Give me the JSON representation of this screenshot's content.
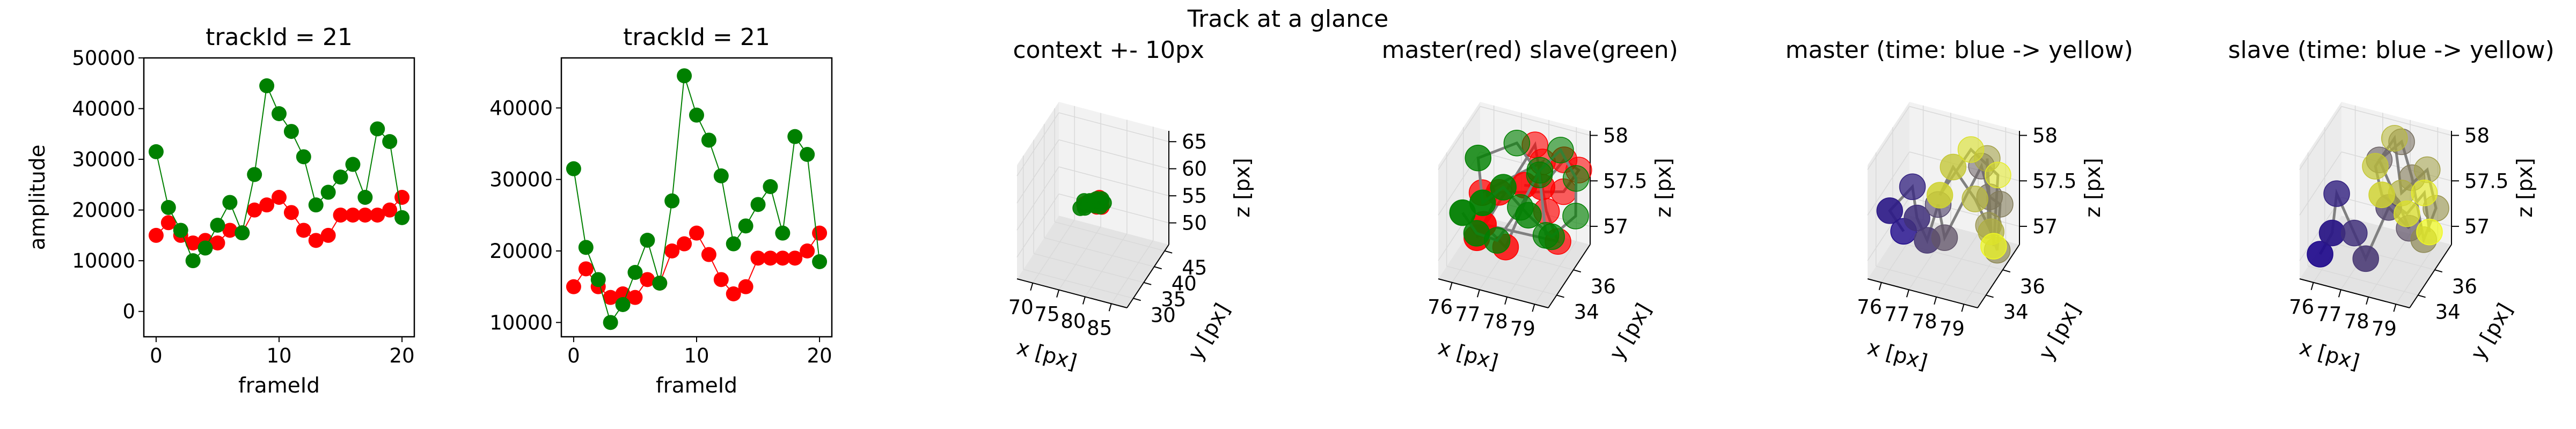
{
  "figure_title": "Track at a glance",
  "colors": {
    "master": "#ff0000",
    "slave": "#008000",
    "link": "#808080",
    "pane_light": "#f2f2f2",
    "pane_mid": "#ebebeb",
    "pane_dark": "#e3e3e3",
    "time_start": "#1f0a8c",
    "time_end": "#f0f921"
  },
  "chart_data": [
    {
      "type": "scatter",
      "title": "trackId = 21",
      "xlabel": "frameId",
      "ylabel": "amplitude",
      "xlim": [
        -1,
        21
      ],
      "ylim": [
        -5000,
        50000
      ],
      "xticks": [
        0,
        10,
        20
      ],
      "yticks": [
        0,
        10000,
        20000,
        30000,
        40000,
        50000
      ],
      "series": [
        {
          "x": [
            0,
            1,
            2,
            3,
            4,
            5,
            6,
            7,
            8,
            9,
            10,
            11,
            12,
            13,
            14,
            15,
            16,
            17,
            18,
            19,
            20
          ],
          "y": [
            15000,
            17500,
            15000,
            13500,
            14000,
            13500,
            16000,
            15500,
            20000,
            21000,
            22500,
            19500,
            16000,
            14000,
            15000,
            19000,
            19000,
            19000,
            19000,
            20000,
            22500
          ]
        },
        {
          "x": [
            0,
            1,
            2,
            3,
            4,
            5,
            6,
            7,
            8,
            9,
            10,
            11,
            12,
            13,
            14,
            15,
            16,
            17,
            18,
            19,
            20
          ],
          "y": [
            31500,
            20500,
            16000,
            10000,
            12500,
            17000,
            21500,
            15500,
            27000,
            44500,
            39000,
            35500,
            30500,
            21000,
            23500,
            26500,
            29000,
            22500,
            36000,
            33500,
            18500
          ]
        }
      ],
      "series_colors": [
        "#ff0000",
        "#008000"
      ]
    },
    {
      "type": "scatter",
      "title": "trackId = 21",
      "xlabel": "frameId",
      "ylabel": "",
      "xlim": [
        -1,
        21
      ],
      "ylim": [
        8000,
        47000
      ],
      "xticks": [
        0,
        10,
        20
      ],
      "yticks": [
        10000,
        20000,
        30000,
        40000
      ],
      "series": [
        {
          "x": [
            0,
            1,
            2,
            3,
            4,
            5,
            6,
            7,
            8,
            9,
            10,
            11,
            12,
            13,
            14,
            15,
            16,
            17,
            18,
            19,
            20
          ],
          "y": [
            15000,
            17500,
            15000,
            13500,
            14000,
            13500,
            16000,
            15500,
            20000,
            21000,
            22500,
            19500,
            16000,
            14000,
            15000,
            19000,
            19000,
            19000,
            19000,
            20000,
            22500
          ]
        },
        {
          "x": [
            0,
            1,
            2,
            3,
            4,
            5,
            6,
            7,
            8,
            9,
            10,
            11,
            12,
            13,
            14,
            15,
            16,
            17,
            18,
            19,
            20
          ],
          "y": [
            31500,
            20500,
            16000,
            10000,
            12500,
            17000,
            21500,
            15500,
            27000,
            44500,
            39000,
            35500,
            30500,
            21000,
            23500,
            26500,
            29000,
            22500,
            36000,
            33500,
            18500
          ]
        }
      ],
      "series_colors": [
        "#ff0000",
        "#008000"
      ]
    },
    {
      "type": "scatter",
      "title": "context +- 10px",
      "xlabel": "x [px]",
      "ylabel": "y [px]",
      "zlabel": "z [px]",
      "xlim": [
        67,
        88
      ],
      "ylim": [
        27,
        47
      ],
      "zlim": [
        46,
        67
      ],
      "xticks": [
        70,
        75,
        80,
        85
      ],
      "yticks": [
        30,
        35,
        40,
        45
      ],
      "zticks": [
        50,
        55,
        60,
        65
      ],
      "series": [
        {
          "x": [
            76.4,
            77.2,
            77.9,
            78.6,
            79.1,
            79.5,
            78.8,
            78.1,
            77.3,
            76.7,
            77.6,
            78.4
          ],
          "y": [
            35.5,
            36.0,
            36.8,
            37.3,
            37.0,
            36.2,
            35.6,
            35.2,
            35.4,
            36.1,
            36.6,
            36.9
          ],
          "z": [
            57.2,
            57.4,
            57.6,
            57.9,
            57.5,
            57.1,
            57.3,
            57.8,
            57.6,
            57.2,
            57.4,
            57.5
          ]
        },
        {
          "x": [
            76.1,
            76.8,
            77.6,
            78.3,
            79.0,
            79.6,
            79.2,
            78.5,
            77.7,
            76.9,
            76.3,
            77.1,
            78.0,
            78.8
          ],
          "y": [
            34.5,
            35.2,
            36.0,
            36.8,
            37.4,
            37.0,
            36.2,
            35.5,
            34.9,
            34.6,
            35.8,
            36.5,
            37.1,
            35.9
          ],
          "z": [
            57.0,
            57.3,
            57.6,
            57.9,
            57.7,
            57.4,
            57.1,
            57.5,
            57.8,
            57.2,
            57.6,
            57.4,
            57.1,
            57.9
          ]
        }
      ]
    },
    {
      "type": "scatter",
      "title": "master(red) slave(green)",
      "xlabel": "x [px]",
      "ylabel": "y [px]",
      "zlabel": "z [px]",
      "xlim": [
        75.5,
        79.5
      ],
      "ylim": [
        33,
        38
      ],
      "zlim": [
        56.8,
        58.05
      ],
      "xticks": [
        76,
        77,
        78,
        79
      ],
      "yticks": [
        34,
        36
      ],
      "zticks": [
        57.0,
        57.5,
        58.0
      ],
      "series": [
        {
          "x": [
            78.2,
            78.6,
            79.1,
            79.3,
            78.9,
            77.1,
            76.6,
            77.8,
            78.4,
            79.0,
            76.9,
            77.4,
            78.1,
            76.3
          ],
          "y": [
            34.4,
            35.2,
            36.2,
            37.3,
            36.8,
            35.0,
            34.0,
            37.0,
            36.4,
            35.8,
            33.8,
            34.8,
            36.9,
            35.6
          ],
          "z": [
            57.85,
            57.75,
            57.95,
            57.7,
            57.5,
            57.6,
            57.2,
            57.9,
            57.3,
            57.1,
            57.4,
            57.05,
            57.75,
            57.45
          ]
        },
        {
          "x": [
            76.2,
            76.5,
            77.0,
            77.6,
            78.1,
            78.7,
            79.2,
            79.4,
            78.8,
            78.2,
            77.5,
            76.9,
            76.4,
            77.2,
            77.9,
            78.5
          ],
          "y": [
            33.6,
            34.3,
            35.1,
            35.9,
            36.6,
            37.1,
            37.3,
            36.6,
            35.7,
            34.9,
            34.2,
            33.7,
            34.8,
            36.8,
            37.2,
            36.0
          ],
          "z": [
            57.5,
            57.2,
            57.05,
            57.35,
            57.7,
            57.9,
            57.6,
            57.3,
            57.15,
            57.45,
            57.8,
            57.65,
            57.95,
            57.9,
            57.55,
            57.1
          ]
        }
      ]
    },
    {
      "type": "scatter",
      "title": "master (time: blue -> yellow)",
      "xlabel": "x [px]",
      "ylabel": "y [px]",
      "zlabel": "z [px]",
      "xlim": [
        75.5,
        79.5
      ],
      "ylim": [
        33,
        38
      ],
      "zlim": [
        56.8,
        58.05
      ],
      "xticks": [
        76,
        77,
        78,
        79
      ],
      "yticks": [
        34,
        36
      ],
      "zticks": [
        57.0,
        57.5,
        58.0
      ],
      "series": [
        {
          "x": [
            76.2,
            76.0,
            76.4,
            76.9,
            77.3,
            77.0,
            77.6,
            78.3,
            78.9,
            79.1,
            79.3,
            78.8,
            78.6,
            79.2,
            78.4,
            78.0,
            77.7,
            78.1,
            78.9,
            79.2
          ],
          "y": [
            35.0,
            34.0,
            35.4,
            34.3,
            34.2,
            36.5,
            35.3,
            37.4,
            36.4,
            37.0,
            36.0,
            36.6,
            37.1,
            35.6,
            36.3,
            35.0,
            34.4,
            36.8,
            37.4,
            35.9
          ],
          "z": [
            57.1,
            57.45,
            57.55,
            57.4,
            57.2,
            57.25,
            57.1,
            57.65,
            57.5,
            57.35,
            57.0,
            57.15,
            57.8,
            57.25,
            57.45,
            57.95,
            57.7,
            57.9,
            57.6,
            57.05
          ]
        }
      ]
    },
    {
      "type": "scatter",
      "title": "slave (time: blue -> yellow)",
      "xlabel": "x [px]",
      "ylabel": "y [px]",
      "zlabel": "z [px]",
      "xlim": [
        75.5,
        79.5
      ],
      "ylim": [
        33,
        38
      ],
      "zlim": [
        56.8,
        58.05
      ],
      "xticks": [
        76,
        77,
        78,
        79
      ],
      "yticks": [
        34,
        36
      ],
      "zticks": [
        57.0,
        57.5,
        58.0
      ],
      "series": [
        {
          "x": [
            76.0,
            76.5,
            76.3,
            77.0,
            77.6,
            78.1,
            78.6,
            77.3,
            77.9,
            78.4,
            79.1,
            79.3,
            78.8,
            78.2,
            77.7,
            77.4,
            78.0,
            78.7,
            79.0,
            79.4
          ],
          "y": [
            33.8,
            33.6,
            34.8,
            34.6,
            34.0,
            35.1,
            35.9,
            36.6,
            37.3,
            36.9,
            36.0,
            36.8,
            37.4,
            36.3,
            37.1,
            35.8,
            34.6,
            35.3,
            36.4,
            35.7
          ],
          "z": [
            57.0,
            57.3,
            57.55,
            57.2,
            57.05,
            57.5,
            57.2,
            57.75,
            57.9,
            57.6,
            57.1,
            57.35,
            57.65,
            57.5,
            57.95,
            57.8,
            57.7,
            57.45,
            57.55,
            57.25
          ]
        }
      ]
    }
  ]
}
